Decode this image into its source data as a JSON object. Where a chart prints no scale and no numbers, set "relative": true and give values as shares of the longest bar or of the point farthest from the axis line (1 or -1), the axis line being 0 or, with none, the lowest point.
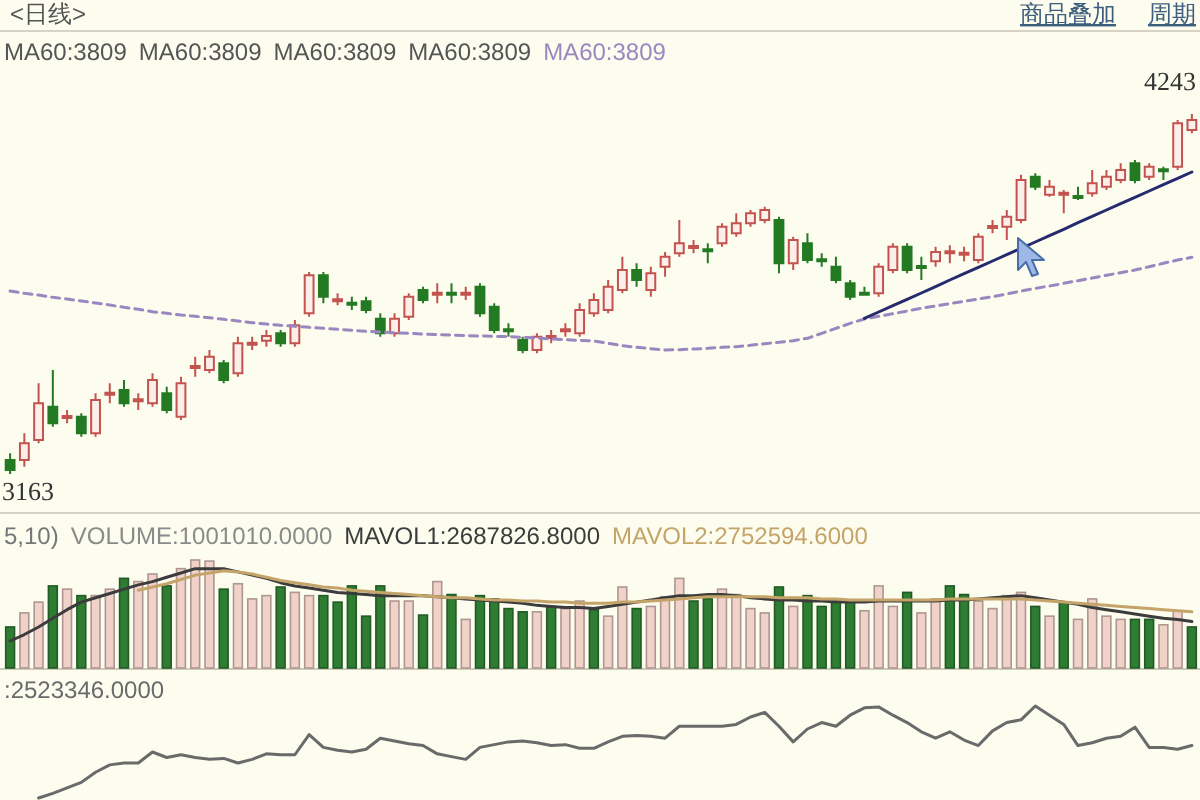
{
  "chart_data": [
    {
      "type": "candlestick",
      "title": "<日线>",
      "categories": [
        null,
        null,
        null,
        null,
        null,
        null,
        null,
        null,
        null,
        null,
        null,
        null,
        null,
        null,
        null,
        null,
        null,
        null,
        null,
        null,
        null,
        null,
        null,
        null,
        null,
        null,
        null,
        null,
        null,
        null,
        null,
        null,
        null,
        null,
        null,
        null,
        null,
        null,
        null,
        null,
        null,
        null,
        null,
        null,
        null,
        null,
        null,
        null,
        null,
        null,
        null,
        null,
        null,
        null,
        null,
        null,
        null,
        null,
        null,
        null,
        null,
        null,
        null,
        null,
        null,
        null,
        null,
        null,
        null,
        null,
        null,
        null,
        null,
        null,
        null,
        null,
        null,
        null,
        null,
        null,
        null,
        null,
        null,
        null
      ],
      "ohlc": [
        [
          3205,
          3225,
          3163,
          3175
        ],
        [
          3205,
          3285,
          3185,
          3255
        ],
        [
          3265,
          3435,
          3255,
          3375
        ],
        [
          3365,
          3475,
          3305,
          3315
        ],
        [
          3333,
          3355,
          3315,
          3337
        ],
        [
          3335,
          3345,
          3275,
          3285
        ],
        [
          3285,
          3405,
          3275,
          3385
        ],
        [
          3403,
          3435,
          3375,
          3407
        ],
        [
          3415,
          3445,
          3365,
          3375
        ],
        [
          3385,
          3405,
          3355,
          3387
        ],
        [
          3375,
          3465,
          3365,
          3445
        ],
        [
          3405,
          3425,
          3345,
          3355
        ],
        [
          3335,
          3455,
          3325,
          3435
        ],
        [
          3483,
          3515,
          3455,
          3487
        ],
        [
          3475,
          3535,
          3465,
          3515
        ],
        [
          3495,
          3505,
          3435,
          3445
        ],
        [
          3465,
          3575,
          3455,
          3555
        ],
        [
          3553,
          3575,
          3535,
          3557
        ],
        [
          3563,
          3595,
          3545,
          3577
        ],
        [
          3585,
          3595,
          3545,
          3555
        ],
        [
          3555,
          3625,
          3545,
          3609
        ],
        [
          3645,
          3769,
          3635,
          3759
        ],
        [
          3759,
          3769,
          3675,
          3695
        ],
        [
          3683,
          3705,
          3669,
          3687
        ],
        [
          3677,
          3695,
          3655,
          3673
        ],
        [
          3681,
          3695,
          3645,
          3655
        ],
        [
          3629,
          3645,
          3575,
          3585
        ],
        [
          3585,
          3645,
          3575,
          3629
        ],
        [
          3635,
          3705,
          3625,
          3695
        ],
        [
          3715,
          3725,
          3675,
          3685
        ],
        [
          3703,
          3735,
          3675,
          3707
        ],
        [
          3707,
          3735,
          3675,
          3703
        ],
        [
          3703,
          3725,
          3685,
          3707
        ],
        [
          3725,
          3735,
          3635,
          3645
        ],
        [
          3665,
          3675,
          3585,
          3595
        ],
        [
          3597,
          3615,
          3575,
          3593
        ],
        [
          3565,
          3575,
          3525,
          3535
        ],
        [
          3535,
          3585,
          3525,
          3575
        ],
        [
          3573,
          3595,
          3555,
          3577
        ],
        [
          3593,
          3615,
          3575,
          3597
        ],
        [
          3585,
          3675,
          3575,
          3655
        ],
        [
          3645,
          3705,
          3635,
          3685
        ],
        [
          3655,
          3745,
          3645,
          3725
        ],
        [
          3715,
          3815,
          3705,
          3775
        ],
        [
          3775,
          3795,
          3725,
          3745
        ],
        [
          3715,
          3785,
          3695,
          3765
        ],
        [
          3785,
          3829,
          3755,
          3815
        ],
        [
          3825,
          3925,
          3815,
          3855
        ],
        [
          3843,
          3865,
          3825,
          3847
        ],
        [
          3837,
          3855,
          3795,
          3833
        ],
        [
          3855,
          3915,
          3845,
          3905
        ],
        [
          3885,
          3945,
          3875,
          3915
        ],
        [
          3915,
          3955,
          3905,
          3945
        ],
        [
          3925,
          3965,
          3915,
          3955
        ],
        [
          3925,
          3935,
          3765,
          3795
        ],
        [
          3795,
          3875,
          3775,
          3865
        ],
        [
          3855,
          3885,
          3795,
          3805
        ],
        [
          3807,
          3825,
          3785,
          3803
        ],
        [
          3785,
          3815,
          3735,
          3745
        ],
        [
          3735,
          3745,
          3685,
          3695
        ],
        [
          3707,
          3725,
          3701,
          3703
        ],
        [
          3705,
          3795,
          3695,
          3785
        ],
        [
          3775,
          3855,
          3765,
          3845
        ],
        [
          3845,
          3855,
          3765,
          3775
        ],
        [
          3787,
          3815,
          3745,
          3783
        ],
        [
          3801,
          3845,
          3785,
          3829
        ],
        [
          3827,
          3849,
          3795,
          3831
        ],
        [
          3823,
          3845,
          3801,
          3827
        ],
        [
          3805,
          3885,
          3795,
          3875
        ],
        [
          3903,
          3925,
          3885,
          3907
        ],
        [
          3905,
          3955,
          3865,
          3935
        ],
        [
          3925,
          4061,
          3915,
          4045
        ],
        [
          4055,
          4065,
          4015,
          4025
        ],
        [
          4001,
          4045,
          3995,
          4025
        ],
        [
          4003,
          4015,
          3945,
          4007
        ],
        [
          3997,
          4025,
          3985,
          3993
        ],
        [
          4005,
          4075,
          3995,
          4035
        ],
        [
          4025,
          4075,
          4015,
          4055
        ],
        [
          4045,
          4095,
          4035,
          4075
        ],
        [
          4095,
          4105,
          4035,
          4045
        ],
        [
          4055,
          4095,
          4045,
          4085
        ],
        [
          4077,
          4085,
          4045,
          4073
        ],
        [
          4085,
          4225,
          4075,
          4215
        ],
        [
          4195,
          4243,
          4185,
          4225
        ]
      ],
      "colors": [
        "#237a23",
        "#c2534e",
        "#c2534e",
        "#237a23",
        "#c2534e",
        "#237a23",
        "#c2534e",
        "#c2534e",
        "#237a23",
        "#c2534e",
        "#c2534e",
        "#237a23",
        "#c2534e",
        "#c2534e",
        "#c2534e",
        "#237a23",
        "#c2534e",
        "#c2534e",
        "#c2534e",
        "#237a23",
        "#c2534e",
        "#c2534e",
        "#237a23",
        "#c2534e",
        "#237a23",
        "#237a23",
        "#237a23",
        "#c2534e",
        "#c2534e",
        "#237a23",
        "#c2534e",
        "#237a23",
        "#c2534e",
        "#237a23",
        "#237a23",
        "#237a23",
        "#237a23",
        "#c2534e",
        "#c2534e",
        "#c2534e",
        "#c2534e",
        "#c2534e",
        "#c2534e",
        "#c2534e",
        "#237a23",
        "#c2534e",
        "#c2534e",
        "#c2534e",
        "#c2534e",
        "#237a23",
        "#c2534e",
        "#c2534e",
        "#c2534e",
        "#c2534e",
        "#237a23",
        "#c2534e",
        "#237a23",
        "#237a23",
        "#237a23",
        "#237a23",
        "#237a23",
        "#c2534e",
        "#c2534e",
        "#237a23",
        "#237a23",
        "#c2534e",
        "#c2534e",
        "#c2534e",
        "#c2534e",
        "#c2534e",
        "#c2534e",
        "#c2534e",
        "#237a23",
        "#c2534e",
        "#c2534e",
        "#237a23",
        "#c2534e",
        "#c2534e",
        "#c2534e",
        "#237a23",
        "#c2534e",
        "#237a23",
        "#c2534e",
        "#c2534e"
      ],
      "series": [
        {
          "type": "line",
          "name": "MA60:3809",
          "color": "#9b87c0",
          "line_style": "dashed",
          "values": [
            3712,
            3705,
            3700,
            3693,
            3688,
            3682,
            3676,
            3670,
            3663,
            3657,
            3650,
            3645,
            3640,
            3636,
            3632,
            3627,
            3622,
            3617,
            3613,
            3609,
            3606,
            3603,
            3600,
            3597,
            3594,
            3591,
            3589,
            3587,
            3585,
            3583,
            3581,
            3580,
            3578,
            3577,
            3576,
            3575,
            3573,
            3571,
            3568,
            3566,
            3564,
            3562,
            3555,
            3548,
            3543,
            3539,
            3535,
            3536,
            3538,
            3540,
            3543,
            3545,
            3549,
            3554,
            3558,
            3563,
            3570,
            3585,
            3600,
            3615,
            3628,
            3636,
            3644,
            3652,
            3660,
            3667,
            3674,
            3681,
            3688,
            3695,
            3703,
            3712,
            3720,
            3727,
            3735,
            3743,
            3751,
            3759,
            3767,
            3775,
            3785,
            3795,
            3805,
            3813
          ]
        },
        {
          "type": "line",
          "color": "#262a6e",
          "values": [
            null,
            null,
            null,
            null,
            null,
            null,
            null,
            null,
            null,
            null,
            null,
            null,
            null,
            null,
            null,
            null,
            null,
            null,
            null,
            null,
            null,
            null,
            null,
            null,
            null,
            null,
            null,
            null,
            null,
            null,
            null,
            null,
            null,
            null,
            null,
            null,
            null,
            null,
            null,
            null,
            null,
            null,
            null,
            null,
            null,
            null,
            null,
            null,
            null,
            null,
            null,
            null,
            null,
            null,
            null,
            null,
            null,
            null,
            null,
            null,
            3630,
            3649,
            3668,
            3687,
            3706,
            3725,
            3745,
            3764,
            3783,
            3802,
            3821,
            3840,
            3859,
            3878,
            3897,
            3917,
            3936,
            3955,
            3974,
            3993,
            4012,
            4031,
            4050,
            4069
          ]
        }
      ],
      "annotations": [
        "4243",
        "3163",
        "MA60:3809",
        "MA60:3809",
        "MA60:3809",
        "MA60:3809",
        "商品叠加",
        "周期"
      ]
    },
    {
      "type": "bar",
      "relative": true,
      "title": "5,10)",
      "categories": [
        null,
        null,
        null,
        null,
        null,
        null,
        null,
        null,
        null,
        null,
        null,
        null,
        null,
        null,
        null,
        null,
        null,
        null,
        null,
        null,
        null,
        null,
        null,
        null,
        null,
        null,
        null,
        null,
        null,
        null,
        null,
        null,
        null,
        null,
        null,
        null,
        null,
        null,
        null,
        null,
        null,
        null,
        null,
        null,
        null,
        null,
        null,
        null,
        null,
        null,
        null,
        null,
        null,
        null,
        null,
        null,
        null,
        null,
        null,
        null,
        null,
        null,
        null,
        null,
        null,
        null,
        null,
        null,
        null,
        null,
        null,
        null,
        null,
        null,
        null,
        null,
        null,
        null,
        null,
        null,
        null,
        null,
        null,
        null
      ],
      "series": [
        {
          "type": "bar",
          "name": "VOLUME:1001010.0000",
          "values": [
            0.38,
            0.51,
            0.61,
            0.76,
            0.73,
            0.67,
            0.67,
            0.73,
            0.83,
            0.8,
            0.87,
            0.76,
            0.92,
            1,
            0.99,
            0.73,
            0.78,
            0.64,
            0.67,
            0.75,
            0.7,
            0.67,
            0.67,
            0.61,
            0.76,
            0.48,
            0.76,
            0.62,
            0.62,
            0.49,
            0.8,
            0.68,
            0.45,
            0.67,
            0.64,
            0.55,
            0.52,
            0.52,
            0.57,
            0.55,
            0.62,
            0.54,
            0.48,
            0.75,
            0.55,
            0.57,
            0.66,
            0.83,
            0.62,
            0.64,
            0.73,
            0.68,
            0.55,
            0.51,
            0.75,
            0.57,
            0.67,
            0.57,
            0.62,
            0.62,
            0.53,
            0.76,
            0.57,
            0.7,
            0.51,
            0.64,
            0.76,
            0.68,
            0.62,
            0.55,
            0.67,
            0.7,
            0.57,
            0.48,
            0.61,
            0.45,
            0.64,
            0.48,
            0.45,
            0.45,
            0.45,
            0.4,
            0.53,
            0.38
          ],
          "colors": [
            "#2e7d32",
            "#f1d2c9",
            "#f1d2c9",
            "#2e7d32",
            "#f1d2c9",
            "#2e7d32",
            "#f1d2c9",
            "#f1d2c9",
            "#2e7d32",
            "#f1d2c9",
            "#f1d2c9",
            "#2e7d32",
            "#f1d2c9",
            "#f1d2c9",
            "#f1d2c9",
            "#2e7d32",
            "#f1d2c9",
            "#f1d2c9",
            "#f1d2c9",
            "#2e7d32",
            "#f1d2c9",
            "#f1d2c9",
            "#2e7d32",
            "#2e7d32",
            "#2e7d32",
            "#2e7d32",
            "#2e7d32",
            "#f1d2c9",
            "#f1d2c9",
            "#2e7d32",
            "#f1d2c9",
            "#2e7d32",
            "#f1d2c9",
            "#2e7d32",
            "#2e7d32",
            "#2e7d32",
            "#2e7d32",
            "#f1d2c9",
            "#2e7d32",
            "#f1d2c9",
            "#f1d2c9",
            "#2e7d32",
            "#f1d2c9",
            "#f1d2c9",
            "#2e7d32",
            "#f1d2c9",
            "#f1d2c9",
            "#f1d2c9",
            "#2e7d32",
            "#2e7d32",
            "#f1d2c9",
            "#f1d2c9",
            "#f1d2c9",
            "#f1d2c9",
            "#2e7d32",
            "#f1d2c9",
            "#2e7d32",
            "#2e7d32",
            "#2e7d32",
            "#2e7d32",
            "#f1d2c9",
            "#f1d2c9",
            "#f1d2c9",
            "#2e7d32",
            "#f1d2c9",
            "#f1d2c9",
            "#2e7d32",
            "#2e7d32",
            "#f1d2c9",
            "#f1d2c9",
            "#f1d2c9",
            "#f1d2c9",
            "#2e7d32",
            "#f1d2c9",
            "#2e7d32",
            "#f1d2c9",
            "#f1d2c9",
            "#f1d2c9",
            "#f1d2c9",
            "#2e7d32",
            "#2e7d32",
            "#f1d2c9",
            "#f1d2c9",
            "#2e7d32"
          ]
        },
        {
          "type": "line",
          "name": "MAVOL1:2687826.8000",
          "color": "#3c3c3c",
          "values": [
            0.25,
            0.31,
            0.38,
            0.46,
            0.54,
            0.61,
            0.65,
            0.69,
            0.73,
            0.77,
            0.8,
            0.84,
            0.88,
            0.92,
            0.92,
            0.92,
            0.89,
            0.86,
            0.83,
            0.79,
            0.76,
            0.74,
            0.72,
            0.7,
            0.69,
            0.68,
            0.67,
            0.67,
            0.67,
            0.67,
            0.66,
            0.65,
            0.64,
            0.63,
            0.62,
            0.61,
            0.6,
            0.58,
            0.57,
            0.56,
            0.56,
            0.55,
            0.57,
            0.59,
            0.61,
            0.63,
            0.65,
            0.67,
            0.67,
            0.68,
            0.68,
            0.67,
            0.65,
            0.64,
            0.63,
            0.63,
            0.62,
            0.62,
            0.61,
            0.61,
            0.61,
            0.62,
            0.62,
            0.62,
            0.62,
            0.62,
            0.63,
            0.63,
            0.64,
            0.65,
            0.66,
            0.67,
            0.65,
            0.63,
            0.61,
            0.59,
            0.56,
            0.54,
            0.52,
            0.5,
            0.48,
            0.46,
            0.45,
            0.43
          ]
        },
        {
          "type": "line",
          "name": "MAVOL2:2752594.6000",
          "color": "#c4a468",
          "values": [
            null,
            null,
            null,
            null,
            null,
            null,
            null,
            null,
            null,
            0.72,
            0.75,
            0.78,
            0.82,
            0.86,
            0.88,
            0.9,
            0.89,
            0.87,
            0.84,
            0.81,
            0.79,
            0.77,
            0.75,
            0.74,
            0.72,
            0.71,
            0.7,
            0.69,
            0.68,
            0.67,
            0.66,
            0.65,
            0.65,
            0.64,
            0.63,
            0.63,
            0.62,
            0.62,
            0.61,
            0.61,
            0.6,
            0.6,
            0.6,
            0.61,
            0.61,
            0.62,
            0.63,
            0.64,
            0.65,
            0.66,
            0.66,
            0.66,
            0.66,
            0.66,
            0.65,
            0.65,
            0.65,
            0.64,
            0.64,
            0.63,
            0.63,
            0.63,
            0.63,
            0.63,
            0.63,
            0.63,
            0.64,
            0.64,
            0.64,
            0.64,
            0.64,
            0.64,
            0.63,
            0.62,
            0.61,
            0.6,
            0.59,
            0.58,
            0.57,
            0.56,
            0.55,
            0.54,
            0.53,
            0.52
          ]
        }
      ]
    },
    {
      "type": "line",
      "relative": true,
      "categories": [
        null,
        null,
        null,
        null,
        null,
        null,
        null,
        null,
        null,
        null,
        null,
        null,
        null,
        null,
        null,
        null,
        null,
        null,
        null,
        null,
        null,
        null,
        null,
        null,
        null,
        null,
        null,
        null,
        null,
        null,
        null,
        null,
        null,
        null,
        null,
        null,
        null,
        null,
        null,
        null,
        null,
        null,
        null,
        null,
        null,
        null,
        null,
        null,
        null,
        null,
        null,
        null,
        null,
        null,
        null,
        null,
        null,
        null,
        null,
        null,
        null,
        null,
        null,
        null,
        null,
        null,
        null,
        null,
        null,
        null,
        null,
        null,
        null,
        null,
        null,
        null,
        null,
        null,
        null,
        null,
        null,
        null,
        null,
        null
      ],
      "series": [
        {
          "name": ":2523346.0000",
          "color": "#6a6a6a",
          "values": [
            null,
            null,
            0,
            0.05,
            0.11,
            0.17,
            0.28,
            0.36,
            0.38,
            0.38,
            0.5,
            0.44,
            0.47,
            0.44,
            0.42,
            0.43,
            0.38,
            0.42,
            0.48,
            0.47,
            0.47,
            0.69,
            0.55,
            0.52,
            0.5,
            0.53,
            0.65,
            0.62,
            0.59,
            0.57,
            0.48,
            0.45,
            0.42,
            0.55,
            0.58,
            0.61,
            0.62,
            0.6,
            0.57,
            0.58,
            0.54,
            0.54,
            0.61,
            0.67,
            0.68,
            0.67,
            0.65,
            0.78,
            0.78,
            0.78,
            0.78,
            0.8,
            0.88,
            0.93,
            0.78,
            0.61,
            0.75,
            0.82,
            0.78,
            0.9,
            0.98,
            0.99,
            0.9,
            0.82,
            0.72,
            0.65,
            0.72,
            0.63,
            0.57,
            0.73,
            0.82,
            0.85,
            1,
            0.9,
            0.8,
            0.57,
            0.6,
            0.65,
            0.67,
            0.77,
            0.55,
            0.55,
            0.53,
            0.57
          ]
        }
      ]
    }
  ]
}
